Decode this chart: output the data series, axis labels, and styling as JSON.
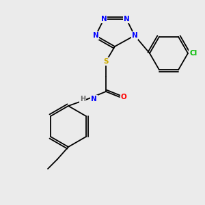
{
  "background_color": "#ebebeb",
  "bond_color": "#000000",
  "atom_colors": {
    "N": "#0000ff",
    "S": "#ccaa00",
    "O": "#ff0000",
    "Cl": "#00bb00",
    "H": "#666666",
    "C": "#000000"
  },
  "font_size": 7.5,
  "lw": 1.3
}
